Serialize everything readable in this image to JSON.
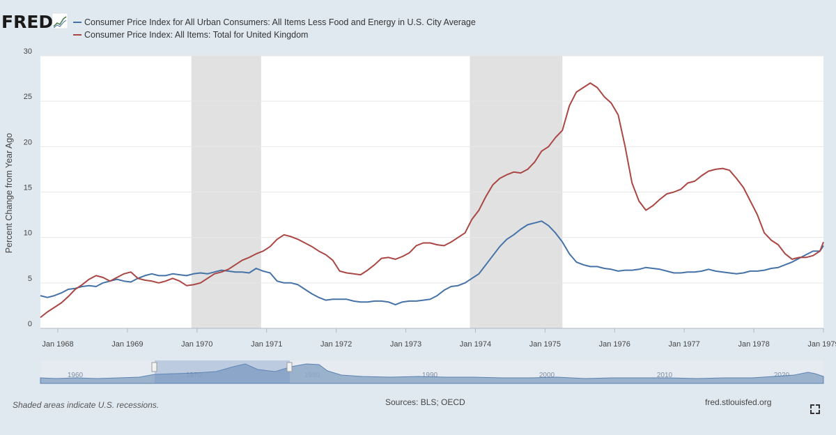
{
  "header": {
    "logo": "FRED"
  },
  "legend": [
    {
      "label": "Consumer Price Index for All Urban Consumers: All Items Less Food and Energy in U.S. City Average",
      "color": "#4572a7"
    },
    {
      "label": "Consumer Price Index: All Items: Total for United Kingdom",
      "color": "#aa4643"
    }
  ],
  "footer": {
    "recession_note": "Shaded areas indicate U.S. recessions.",
    "sources": "Sources: BLS; OECD",
    "link": "fred.stlouisfed.org"
  },
  "navigator": {
    "labels": [
      "1960",
      "1970",
      "1980",
      "1990",
      "2000",
      "2010",
      "2020"
    ]
  },
  "chart_data": {
    "type": "line",
    "ylabel": "Percent Change from Year Ago",
    "xlabel": "",
    "ylim": [
      0,
      30
    ],
    "yticks": [
      0,
      5,
      10,
      15,
      20,
      25,
      30
    ],
    "xlim": [
      1967.75,
      1979.0
    ],
    "xticks": [
      {
        "value": 1968,
        "label": "Jan 1968"
      },
      {
        "value": 1969,
        "label": "Jan 1969"
      },
      {
        "value": 1970,
        "label": "Jan 1970"
      },
      {
        "value": 1971,
        "label": "Jan 1971"
      },
      {
        "value": 1972,
        "label": "Jan 1972"
      },
      {
        "value": 1973,
        "label": "Jan 1973"
      },
      {
        "value": 1974,
        "label": "Jan 1974"
      },
      {
        "value": 1975,
        "label": "Jan 1975"
      },
      {
        "value": 1976,
        "label": "Jan 1976"
      },
      {
        "value": 1977,
        "label": "Jan 1977"
      },
      {
        "value": 1978,
        "label": "Jan 1978"
      },
      {
        "value": 1979,
        "label": "Jan 1979"
      }
    ],
    "recessions": [
      [
        1969.92,
        1970.92
      ],
      [
        1973.92,
        1975.25
      ]
    ],
    "grid": true,
    "series": [
      {
        "name": "Consumer Price Index for All Urban Consumers: All Items Less Food and Energy in U.S. City Average",
        "color": "#4572a7",
        "x": [
          1967.75,
          1967.85,
          1967.95,
          1968.05,
          1968.15,
          1968.25,
          1968.35,
          1968.45,
          1968.55,
          1968.65,
          1968.75,
          1968.85,
          1968.95,
          1969.05,
          1969.15,
          1969.25,
          1969.35,
          1969.45,
          1969.55,
          1969.65,
          1969.75,
          1969.85,
          1969.95,
          1970.05,
          1970.15,
          1970.25,
          1970.35,
          1970.45,
          1970.55,
          1970.65,
          1970.75,
          1970.85,
          1970.95,
          1971.05,
          1971.15,
          1971.25,
          1971.35,
          1971.45,
          1971.55,
          1971.65,
          1971.75,
          1971.85,
          1971.95,
          1972.05,
          1972.15,
          1972.25,
          1972.35,
          1972.45,
          1972.55,
          1972.65,
          1972.75,
          1972.85,
          1972.95,
          1973.05,
          1973.15,
          1973.25,
          1973.35,
          1973.45,
          1973.55,
          1973.65,
          1973.75,
          1973.85,
          1973.95,
          1974.05,
          1974.15,
          1974.25,
          1974.35,
          1974.45,
          1974.55,
          1974.65,
          1974.75,
          1974.85,
          1974.95,
          1975.05,
          1975.15,
          1975.25,
          1975.35,
          1975.45,
          1975.55,
          1975.65,
          1975.75,
          1975.85,
          1975.95,
          1976.05,
          1976.15,
          1976.25,
          1976.35,
          1976.45,
          1976.55,
          1976.65,
          1976.75,
          1976.85,
          1976.95,
          1977.05,
          1977.15,
          1977.25,
          1977.35,
          1977.45,
          1977.55,
          1977.65,
          1977.75,
          1977.85,
          1977.95,
          1978.05,
          1978.15,
          1978.25,
          1978.35,
          1978.45,
          1978.55,
          1978.65,
          1978.75,
          1978.85,
          1978.95,
          1979.0
        ],
        "values": [
          3.6,
          3.4,
          3.6,
          3.9,
          4.3,
          4.4,
          4.6,
          4.7,
          4.6,
          5.0,
          5.2,
          5.4,
          5.2,
          5.1,
          5.5,
          5.8,
          6.0,
          5.8,
          5.8,
          6.0,
          5.9,
          5.8,
          6.0,
          6.1,
          6.0,
          6.2,
          6.4,
          6.3,
          6.2,
          6.2,
          6.1,
          6.6,
          6.3,
          6.1,
          5.2,
          5.0,
          5.0,
          4.8,
          4.3,
          3.8,
          3.4,
          3.1,
          3.2,
          3.2,
          3.2,
          3.0,
          2.9,
          2.9,
          3.0,
          3.0,
          2.9,
          2.6,
          2.9,
          3.0,
          3.0,
          3.1,
          3.2,
          3.6,
          4.2,
          4.6,
          4.7,
          5.0,
          5.5,
          6.0,
          7.0,
          8.0,
          9.0,
          9.8,
          10.3,
          10.9,
          11.4,
          11.6,
          11.8,
          11.3,
          10.5,
          9.5,
          8.2,
          7.3,
          7.0,
          6.8,
          6.8,
          6.6,
          6.5,
          6.3,
          6.4,
          6.4,
          6.5,
          6.7,
          6.6,
          6.5,
          6.3,
          6.1,
          6.1,
          6.2,
          6.2,
          6.3,
          6.5,
          6.3,
          6.2,
          6.1,
          6.0,
          6.1,
          6.3,
          6.3,
          6.4,
          6.6,
          6.7,
          7.0,
          7.3,
          7.7,
          8.1,
          8.5,
          8.5,
          9.1
        ]
      },
      {
        "name": "Consumer Price Index: All Items: Total for United Kingdom",
        "color": "#aa4643",
        "x": [
          1967.75,
          1967.85,
          1967.95,
          1968.05,
          1968.15,
          1968.25,
          1968.35,
          1968.45,
          1968.55,
          1968.65,
          1968.75,
          1968.85,
          1968.95,
          1969.05,
          1969.15,
          1969.25,
          1969.35,
          1969.45,
          1969.55,
          1969.65,
          1969.75,
          1969.85,
          1969.95,
          1970.05,
          1970.15,
          1970.25,
          1970.35,
          1970.45,
          1970.55,
          1970.65,
          1970.75,
          1970.85,
          1970.95,
          1971.05,
          1971.15,
          1971.25,
          1971.35,
          1971.45,
          1971.55,
          1971.65,
          1971.75,
          1971.85,
          1971.95,
          1972.05,
          1972.15,
          1972.25,
          1972.35,
          1972.45,
          1972.55,
          1972.65,
          1972.75,
          1972.85,
          1972.95,
          1973.05,
          1973.15,
          1973.25,
          1973.35,
          1973.45,
          1973.55,
          1973.65,
          1973.75,
          1973.85,
          1973.95,
          1974.05,
          1974.15,
          1974.25,
          1974.35,
          1974.45,
          1974.55,
          1974.65,
          1974.75,
          1974.85,
          1974.95,
          1975.05,
          1975.15,
          1975.25,
          1975.35,
          1975.45,
          1975.55,
          1975.65,
          1975.75,
          1975.85,
          1975.95,
          1976.05,
          1976.15,
          1976.25,
          1976.35,
          1976.45,
          1976.55,
          1976.65,
          1976.75,
          1976.85,
          1976.95,
          1977.05,
          1977.15,
          1977.25,
          1977.35,
          1977.45,
          1977.55,
          1977.65,
          1977.75,
          1977.85,
          1977.95,
          1978.05,
          1978.15,
          1978.25,
          1978.35,
          1978.45,
          1978.55,
          1978.65,
          1978.75,
          1978.85,
          1978.95,
          1979.0
        ],
        "values": [
          1.2,
          1.8,
          2.3,
          2.8,
          3.5,
          4.3,
          4.8,
          5.4,
          5.8,
          5.6,
          5.2,
          5.6,
          6.0,
          6.2,
          5.5,
          5.3,
          5.2,
          5.0,
          5.2,
          5.5,
          5.2,
          4.7,
          4.8,
          5.0,
          5.5,
          6.0,
          6.2,
          6.5,
          7.0,
          7.5,
          7.8,
          8.2,
          8.5,
          9.0,
          9.8,
          10.3,
          10.1,
          9.8,
          9.4,
          9.0,
          8.5,
          8.1,
          7.5,
          6.3,
          6.1,
          6.0,
          5.9,
          6.4,
          7.0,
          7.7,
          7.8,
          7.6,
          7.9,
          8.3,
          9.1,
          9.4,
          9.4,
          9.2,
          9.1,
          9.5,
          10.0,
          10.5,
          12.0,
          13.0,
          14.5,
          15.8,
          16.5,
          16.9,
          17.2,
          17.1,
          17.5,
          18.3,
          19.5,
          20.0,
          21.0,
          21.8,
          24.5,
          26.0,
          26.5,
          27.0,
          26.5,
          25.5,
          24.8,
          23.5,
          20.0,
          16.0,
          14.0,
          13.0,
          13.5,
          14.2,
          14.8,
          15.0,
          15.3,
          16.0,
          16.2,
          16.8,
          17.3,
          17.5,
          17.6,
          17.4,
          16.5,
          15.5,
          14.0,
          12.5,
          10.5,
          9.7,
          9.2,
          8.2,
          7.6,
          7.8,
          7.8,
          8.0,
          8.5,
          9.5
        ]
      }
    ]
  }
}
